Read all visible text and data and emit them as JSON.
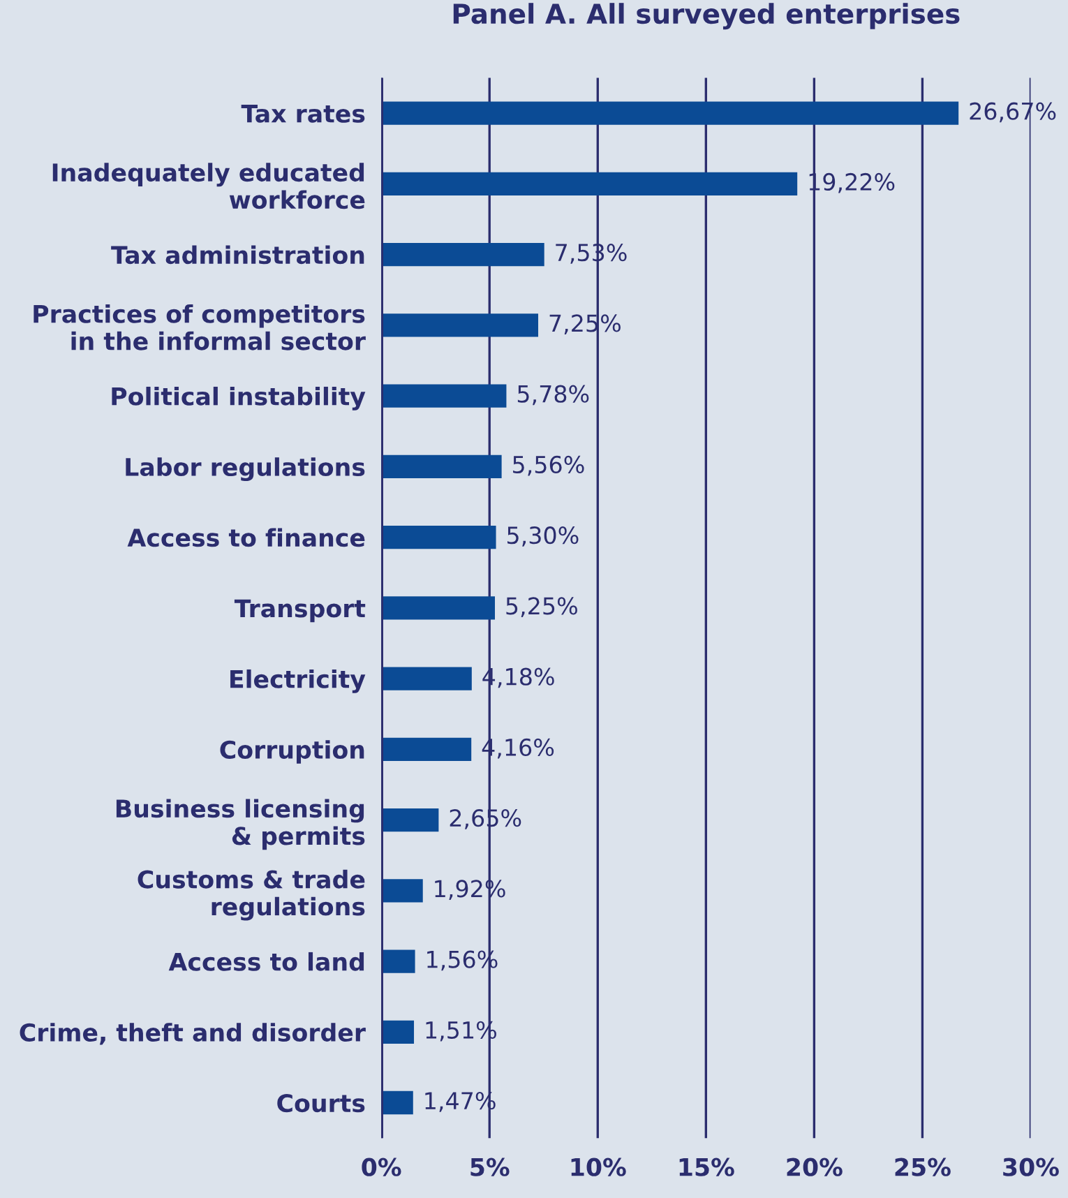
{
  "chart_data": {
    "type": "bar",
    "orientation": "horizontal",
    "title": "Panel A. All surveyed enterprises",
    "categories": [
      "Tax rates",
      "Inadequately educated\nworkforce",
      "Tax administration",
      "Practices of competitors\nin the informal sector",
      "Political instability",
      "Labor regulations",
      "Access to finance",
      "Transport",
      "Electricity",
      "Corruption",
      "Business licensing\n& permits",
      "Customs & trade\nregulations",
      "Access to land",
      "Crime, theft and disorder",
      "Courts"
    ],
    "values": [
      26.67,
      19.22,
      7.53,
      7.25,
      5.78,
      5.56,
      5.3,
      5.25,
      4.18,
      4.16,
      2.65,
      1.92,
      1.56,
      1.51,
      1.47
    ],
    "value_labels": [
      "26,67%",
      "19,22%",
      "7,53%",
      "7,25%",
      "5,78%",
      "5,56%",
      "5,30%",
      "5,25%",
      "4,18%",
      "4,16%",
      "2,65%",
      "1,92%",
      "1,56%",
      "1,51%",
      "1,47%"
    ],
    "color": "#0b4b95",
    "xlim": [
      0,
      30
    ],
    "xticks": [
      {
        "value": 0,
        "label": "0%"
      },
      {
        "value": 5,
        "label": "5%"
      },
      {
        "value": 10,
        "label": "10%"
      },
      {
        "value": 15,
        "label": "15%"
      },
      {
        "value": 20,
        "label": "20%"
      },
      {
        "value": 25,
        "label": "25%"
      },
      {
        "value": 30,
        "label": "30%"
      }
    ],
    "grid": "x",
    "legend": false
  }
}
